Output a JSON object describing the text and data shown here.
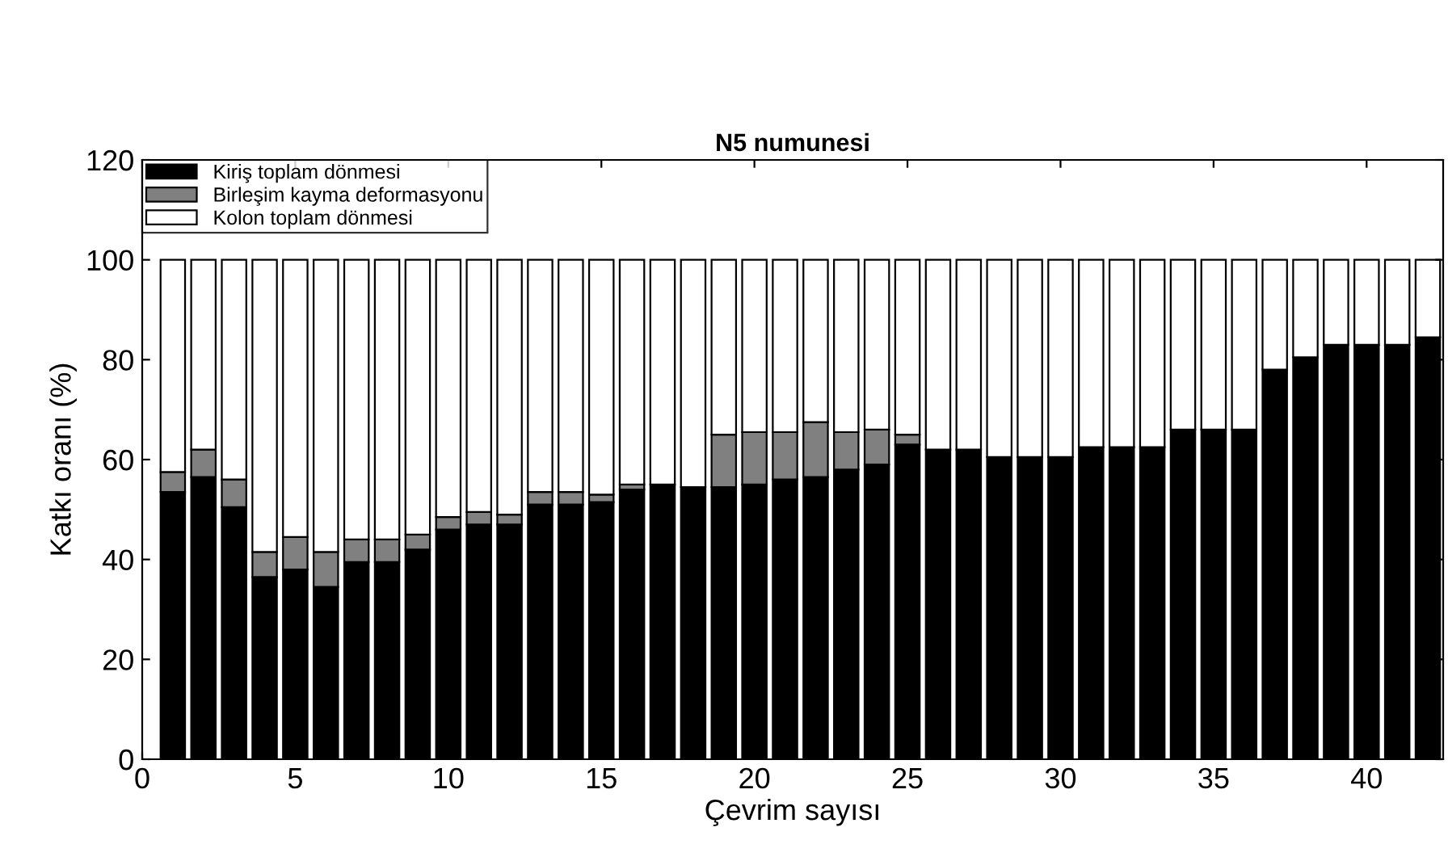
{
  "chart_data": {
    "type": "bar",
    "stacked": true,
    "title": "N5 numunesi",
    "xlabel": "Çevrim sayısı",
    "ylabel": "Katkı oranı (%)",
    "x": [
      1,
      2,
      3,
      4,
      5,
      6,
      7,
      8,
      9,
      10,
      11,
      12,
      13,
      14,
      15,
      16,
      17,
      18,
      19,
      20,
      21,
      22,
      23,
      24,
      25,
      26,
      27,
      28,
      29,
      30,
      31,
      32,
      33,
      34,
      35,
      36,
      37,
      38,
      39,
      40,
      41,
      42
    ],
    "series": [
      {
        "name": "Kiriş toplam dönmesi",
        "color": "#000000",
        "values": [
          53.5,
          56.5,
          50.5,
          36.5,
          38,
          34.5,
          39.5,
          39.5,
          42,
          46,
          47,
          47,
          51,
          51,
          51.5,
          54,
          55,
          54.5,
          54.5,
          55,
          56,
          56.5,
          58,
          59,
          63,
          62,
          62,
          60.5,
          60.5,
          60.5,
          62.5,
          62.5,
          62.5,
          66,
          66,
          66,
          78,
          80.5,
          83,
          83,
          83,
          84.5
        ]
      },
      {
        "name": "Birleşim kayma deformasyonu",
        "color": "#808080",
        "values": [
          4,
          5.5,
          5.5,
          5,
          6.5,
          7,
          4.5,
          4.5,
          3,
          2.5,
          2.5,
          2,
          2.5,
          2.5,
          1.5,
          1,
          0,
          0,
          10.5,
          10.5,
          9.5,
          11,
          7.5,
          7,
          2,
          0,
          0,
          0,
          0,
          0,
          0,
          0,
          0,
          0,
          0,
          0,
          0,
          0,
          0,
          0,
          0,
          0
        ]
      },
      {
        "name": "Kolon toplam dönmesi",
        "color": "#ffffff",
        "values": [
          42.5,
          38,
          44,
          58.5,
          55.5,
          58.5,
          56,
          56,
          55,
          51.5,
          50.5,
          51,
          46.5,
          46.5,
          47,
          45,
          45,
          45.5,
          35,
          34.5,
          34.5,
          32.5,
          34.5,
          34,
          35,
          38,
          38,
          39.5,
          39.5,
          39.5,
          37.5,
          37.5,
          37.5,
          34,
          34,
          34,
          22,
          19.5,
          17,
          17,
          17,
          15.5
        ]
      }
    ],
    "xlim": [
      0,
      42.5
    ],
    "xticks": [
      0,
      5,
      10,
      15,
      20,
      25,
      30,
      35,
      40
    ],
    "ylim": [
      0,
      120
    ],
    "yticks": [
      0,
      20,
      40,
      60,
      80,
      100,
      120
    ],
    "grid": false,
    "legend": "top left"
  }
}
